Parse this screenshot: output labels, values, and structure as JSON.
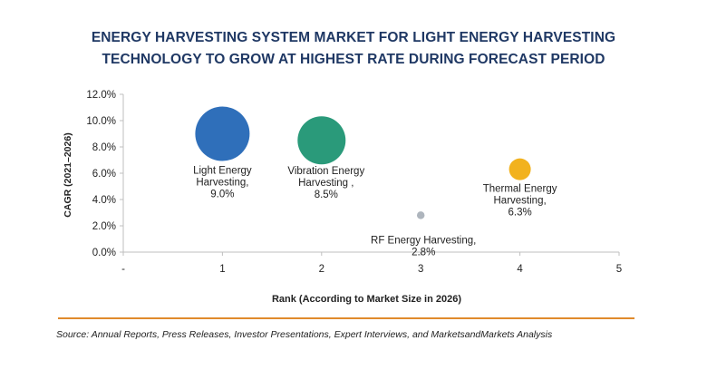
{
  "title_lines": [
    "ENERGY HARVESTING SYSTEM MARKET FOR LIGHT ENERGY HARVESTING",
    "TECHNOLOGY TO GROW AT HIGHEST RATE DURING FORECAST PERIOD"
  ],
  "source": "Source: Annual Reports, Press Releases, Investor Presentations, Expert Interviews, and MarketsandMarkets Analysis",
  "colors": {
    "title": "#1f3864",
    "divider": "#e08a2c",
    "light": "#2f6fba",
    "vibration": "#2a9a7a",
    "rf": "#9aa3ad",
    "thermal": "#f2b21e"
  },
  "chart_data": {
    "type": "scatter",
    "variant": "bubble",
    "title": "ENERGY HARVESTING SYSTEM MARKET FOR LIGHT ENERGY HARVESTING TECHNOLOGY TO GROW AT HIGHEST RATE DURING FORECAST PERIOD",
    "xlabel": "Rank (According to Market Size in 2026)",
    "ylabel": "CAGR (2021–2026)",
    "xlim": [
      0,
      5
    ],
    "ylim": [
      0,
      12
    ],
    "xticks": [
      "-",
      "1",
      "2",
      "3",
      "4",
      "5"
    ],
    "yticks": [
      "0.0%",
      "2.0%",
      "4.0%",
      "6.0%",
      "8.0%",
      "10.0%",
      "12.0%"
    ],
    "grid": false,
    "legend": "none",
    "series": [
      {
        "name": "Light Energy Harvesting",
        "label_lines": [
          "Light Energy",
          "Harvesting,",
          "9.0%"
        ],
        "x": 1,
        "y": 9.0,
        "size": 1.0,
        "color": "#2f6fba"
      },
      {
        "name": "Vibration Energy Harvesting",
        "label_lines": [
          "Vibration Energy",
          "Harvesting ,",
          "8.5%"
        ],
        "x": 2,
        "y": 8.5,
        "size": 0.78,
        "color": "#2a9a7a"
      },
      {
        "name": "RF Energy Harvesting",
        "label_lines": [
          "RF Energy Harvesting,",
          "2.8%"
        ],
        "x": 3,
        "y": 2.8,
        "size": 0.02,
        "color": "#9aa3ad"
      },
      {
        "name": "Thermal Energy Harvesting",
        "label_lines": [
          "Thermal Energy",
          "Harvesting,",
          "6.3%"
        ],
        "x": 4,
        "y": 6.3,
        "size": 0.16,
        "color": "#f2b21e"
      }
    ]
  }
}
